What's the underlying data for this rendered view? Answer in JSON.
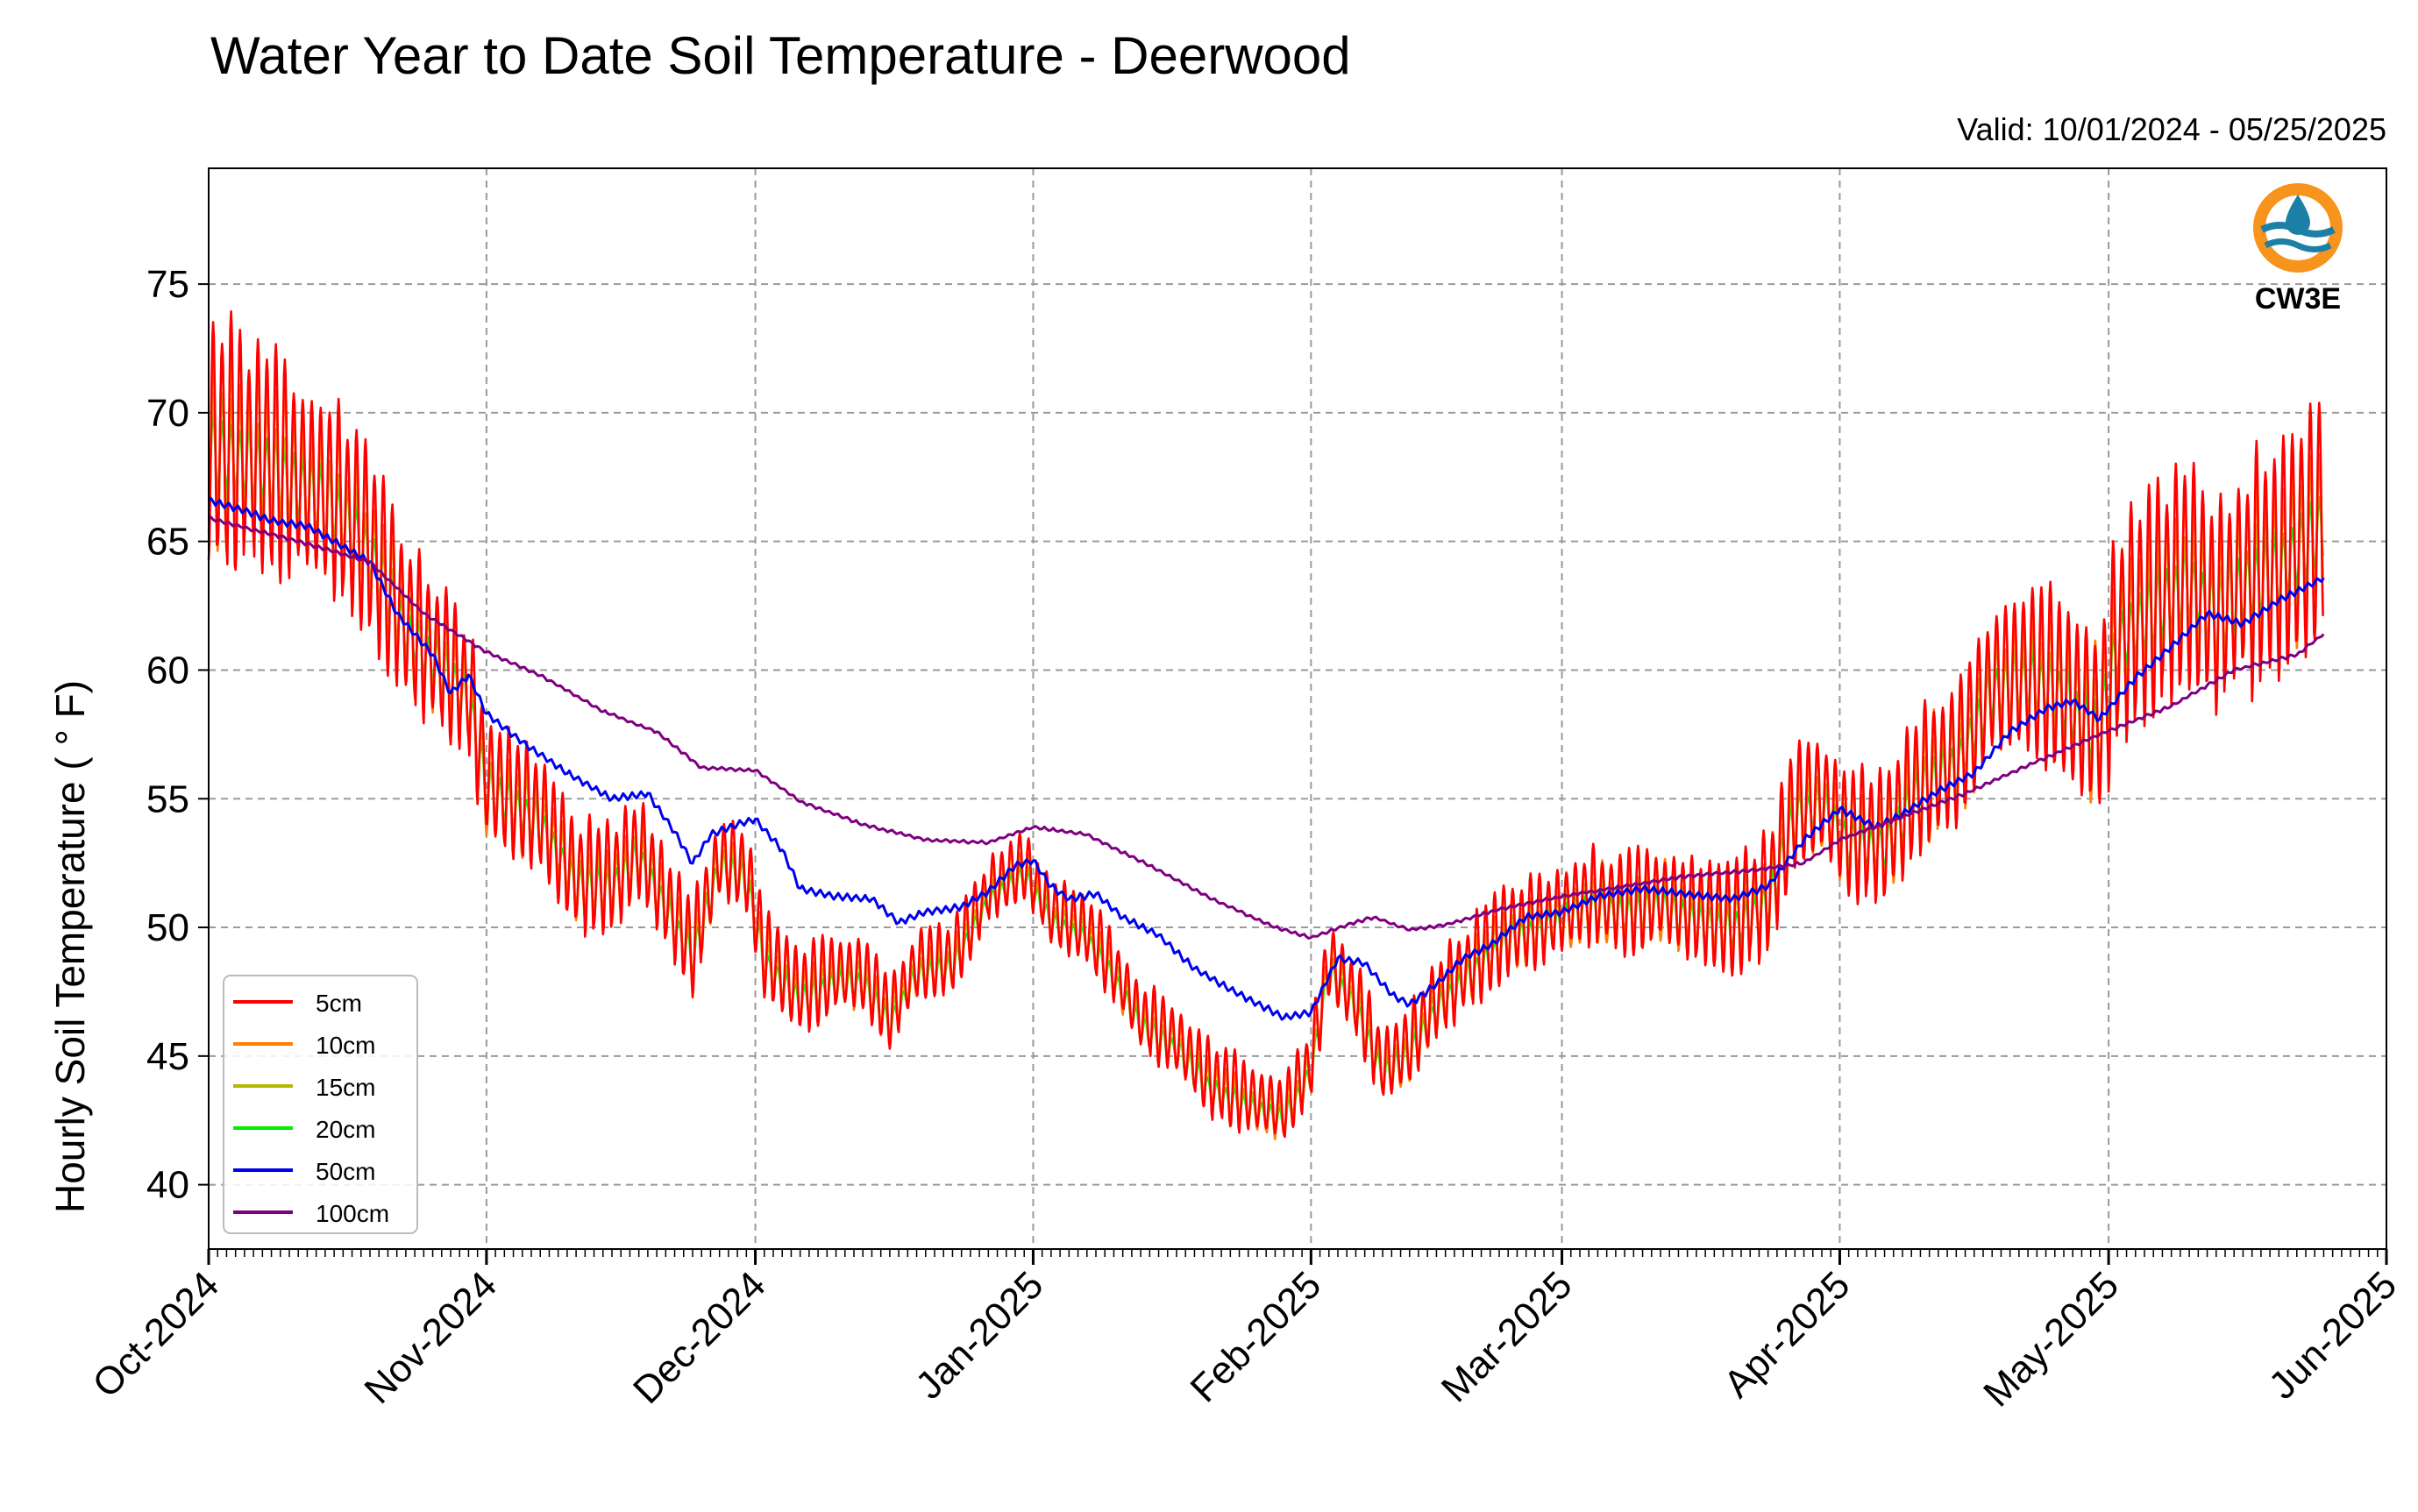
{
  "chart_data": {
    "type": "line",
    "title": "Water Year to Date Soil Temperature - Deerwood",
    "subtitle": "Valid: 10/01/2024 - 05/25/2025",
    "xlabel": "",
    "ylabel": "Hourly Soil Temperature ( ° F)",
    "x_range": [
      "2024-10-01",
      "2025-06-01"
    ],
    "ylim": [
      37.5,
      79.5
    ],
    "y_ticks": [
      40,
      45,
      50,
      55,
      60,
      65,
      70,
      75
    ],
    "x_ticks": [
      {
        "date": "2024-10-01",
        "label": "Oct-2024"
      },
      {
        "date": "2024-11-01",
        "label": "Nov-2024"
      },
      {
        "date": "2024-12-01",
        "label": "Dec-2024"
      },
      {
        "date": "2025-01-01",
        "label": "Jan-2025"
      },
      {
        "date": "2025-02-01",
        "label": "Feb-2025"
      },
      {
        "date": "2025-03-01",
        "label": "Mar-2025"
      },
      {
        "date": "2025-04-01",
        "label": "Apr-2025"
      },
      {
        "date": "2025-05-01",
        "label": "May-2025"
      },
      {
        "date": "2025-06-01",
        "label": "Jun-2025"
      }
    ],
    "grid": true,
    "legend_position": "lower-left",
    "series": [
      {
        "name": "5cm",
        "color": "#ff0000",
        "daily_swing": 0.55
      },
      {
        "name": "10cm",
        "color": "#ff7f00",
        "daily_swing": 0.42
      },
      {
        "name": "15cm",
        "color": "#b5b800",
        "daily_swing": 0.28
      },
      {
        "name": "20cm",
        "color": "#00ee00",
        "daily_swing": 0.2
      },
      {
        "name": "50cm",
        "color": "#0000ee",
        "points": [
          [
            "2024-10-01",
            66.6
          ],
          [
            "2024-10-05",
            66.2
          ],
          [
            "2024-10-08",
            65.8
          ],
          [
            "2024-10-12",
            65.6
          ],
          [
            "2024-10-16",
            64.8
          ],
          [
            "2024-10-19",
            64.2
          ],
          [
            "2024-10-22",
            62.2
          ],
          [
            "2024-10-26",
            60.6
          ],
          [
            "2024-10-28",
            59.1
          ],
          [
            "2024-10-30",
            59.8
          ],
          [
            "2024-11-01",
            58.3
          ],
          [
            "2024-11-05",
            57.2
          ],
          [
            "2024-11-10",
            56.0
          ],
          [
            "2024-11-15",
            55.0
          ],
          [
            "2024-11-19",
            55.2
          ],
          [
            "2024-11-22",
            53.7
          ],
          [
            "2024-11-24",
            52.5
          ],
          [
            "2024-11-26",
            53.6
          ],
          [
            "2024-11-29",
            54.0
          ],
          [
            "2024-12-01",
            54.2
          ],
          [
            "2024-12-04",
            53.0
          ],
          [
            "2024-12-06",
            51.5
          ],
          [
            "2024-12-10",
            51.2
          ],
          [
            "2024-12-14",
            51.1
          ],
          [
            "2024-12-17",
            50.2
          ],
          [
            "2024-12-20",
            50.6
          ],
          [
            "2024-12-24",
            50.8
          ],
          [
            "2024-12-27",
            51.4
          ],
          [
            "2024-12-30",
            52.4
          ],
          [
            "2025-01-01",
            52.6
          ],
          [
            "2025-01-03",
            51.6
          ],
          [
            "2025-01-05",
            51.1
          ],
          [
            "2025-01-08",
            51.3
          ],
          [
            "2025-01-11",
            50.4
          ],
          [
            "2025-01-15",
            49.7
          ],
          [
            "2025-01-19",
            48.4
          ],
          [
            "2025-01-24",
            47.4
          ],
          [
            "2025-01-29",
            46.5
          ],
          [
            "2025-02-01",
            46.7
          ],
          [
            "2025-02-04",
            48.8
          ],
          [
            "2025-02-07",
            48.6
          ],
          [
            "2025-02-10",
            47.4
          ],
          [
            "2025-02-12",
            47.0
          ],
          [
            "2025-02-15",
            47.8
          ],
          [
            "2025-02-18",
            48.8
          ],
          [
            "2025-02-21",
            49.3
          ],
          [
            "2025-02-25",
            50.4
          ],
          [
            "2025-03-01",
            50.6
          ],
          [
            "2025-03-05",
            51.2
          ],
          [
            "2025-03-10",
            51.5
          ],
          [
            "2025-03-15",
            51.3
          ],
          [
            "2025-03-20",
            51.1
          ],
          [
            "2025-03-24",
            51.6
          ],
          [
            "2025-03-28",
            53.4
          ],
          [
            "2025-04-01",
            54.6
          ],
          [
            "2025-04-05",
            53.9
          ],
          [
            "2025-04-08",
            54.4
          ],
          [
            "2025-04-12",
            55.3
          ],
          [
            "2025-04-16",
            56.0
          ],
          [
            "2025-04-20",
            57.6
          ],
          [
            "2025-04-24",
            58.5
          ],
          [
            "2025-04-27",
            58.8
          ],
          [
            "2025-04-30",
            58.1
          ],
          [
            "2025-05-04",
            59.7
          ],
          [
            "2025-05-08",
            60.9
          ],
          [
            "2025-05-12",
            62.2
          ],
          [
            "2025-05-16",
            61.8
          ],
          [
            "2025-05-20",
            62.7
          ],
          [
            "2025-05-25",
            63.6
          ]
        ]
      },
      {
        "name": "100cm",
        "color": "#7f007f",
        "points": [
          [
            "2024-10-01",
            65.9
          ],
          [
            "2024-10-10",
            65.1
          ],
          [
            "2024-10-19",
            64.2
          ],
          [
            "2024-10-25",
            62.2
          ],
          [
            "2024-11-01",
            60.7
          ],
          [
            "2024-11-07",
            59.8
          ],
          [
            "2024-11-14",
            58.4
          ],
          [
            "2024-11-20",
            57.6
          ],
          [
            "2024-11-25",
            56.2
          ],
          [
            "2024-12-01",
            56.1
          ],
          [
            "2024-12-06",
            54.9
          ],
          [
            "2024-12-13",
            54.0
          ],
          [
            "2024-12-20",
            53.4
          ],
          [
            "2024-12-27",
            53.3
          ],
          [
            "2025-01-01",
            53.9
          ],
          [
            "2025-01-07",
            53.6
          ],
          [
            "2025-01-14",
            52.4
          ],
          [
            "2025-01-21",
            51.1
          ],
          [
            "2025-01-28",
            50.0
          ],
          [
            "2025-02-01",
            49.6
          ],
          [
            "2025-02-05",
            50.1
          ],
          [
            "2025-02-08",
            50.4
          ],
          [
            "2025-02-12",
            49.9
          ],
          [
            "2025-02-16",
            50.1
          ],
          [
            "2025-02-22",
            50.7
          ],
          [
            "2025-03-01",
            51.2
          ],
          [
            "2025-03-08",
            51.6
          ],
          [
            "2025-03-15",
            52.0
          ],
          [
            "2025-03-22",
            52.2
          ],
          [
            "2025-03-28",
            52.5
          ],
          [
            "2025-04-01",
            53.4
          ],
          [
            "2025-04-08",
            54.3
          ],
          [
            "2025-04-15",
            55.2
          ],
          [
            "2025-04-22",
            56.3
          ],
          [
            "2025-04-30",
            57.5
          ],
          [
            "2025-05-08",
            58.6
          ],
          [
            "2025-05-15",
            60.0
          ],
          [
            "2025-05-22",
            60.6
          ],
          [
            "2025-05-25",
            61.4
          ]
        ]
      }
    ],
    "shallow_baseline": [
      [
        "2024-10-01",
        68.5
      ],
      [
        "2024-10-08",
        67.7
      ],
      [
        "2024-10-15",
        66.3
      ],
      [
        "2024-10-19",
        64.5
      ],
      [
        "2024-10-23",
        61.5
      ],
      [
        "2024-10-27",
        60.0
      ],
      [
        "2024-10-30",
        58.8
      ],
      [
        "2024-11-01",
        55.4
      ],
      [
        "2024-11-07",
        54.0
      ],
      [
        "2024-11-11",
        51.6
      ],
      [
        "2024-11-15",
        51.5
      ],
      [
        "2024-11-18",
        52.7
      ],
      [
        "2024-11-21",
        50.7
      ],
      [
        "2024-11-24",
        48.8
      ],
      [
        "2024-11-27",
        52.3
      ],
      [
        "2024-11-30",
        51.8
      ],
      [
        "2024-12-02",
        48.6
      ],
      [
        "2024-12-06",
        47.1
      ],
      [
        "2024-12-10",
        47.8
      ],
      [
        "2024-12-13",
        47.8
      ],
      [
        "2024-12-16",
        46.2
      ],
      [
        "2024-12-19",
        48.1
      ],
      [
        "2024-12-23",
        48.4
      ],
      [
        "2024-12-27",
        51.0
      ],
      [
        "2024-12-31",
        52.0
      ],
      [
        "2025-01-03",
        50.2
      ],
      [
        "2025-01-07",
        49.5
      ],
      [
        "2025-01-10",
        48.0
      ],
      [
        "2025-01-13",
        46.1
      ],
      [
        "2025-01-17",
        45.2
      ],
      [
        "2025-01-21",
        43.6
      ],
      [
        "2025-01-25",
        43.0
      ],
      [
        "2025-01-29",
        42.5
      ],
      [
        "2025-02-01",
        44.3
      ],
      [
        "2025-02-03",
        48.3
      ],
      [
        "2025-02-06",
        46.8
      ],
      [
        "2025-02-09",
        44.2
      ],
      [
        "2025-02-12",
        45.0
      ],
      [
        "2025-02-15",
        46.8
      ],
      [
        "2025-02-19",
        48.2
      ],
      [
        "2025-02-23",
        49.5
      ],
      [
        "2025-02-27",
        49.9
      ],
      [
        "2025-03-04",
        50.8
      ],
      [
        "2025-03-08",
        50.5
      ],
      [
        "2025-03-12",
        50.8
      ],
      [
        "2025-03-16",
        50.2
      ],
      [
        "2025-03-20",
        49.9
      ],
      [
        "2025-03-24",
        50.9
      ],
      [
        "2025-03-27",
        54.3
      ],
      [
        "2025-03-30",
        54.7
      ],
      [
        "2025-04-02",
        53.2
      ],
      [
        "2025-04-06",
        53.1
      ],
      [
        "2025-04-10",
        55.3
      ],
      [
        "2025-04-14",
        56.2
      ],
      [
        "2025-04-18",
        59.1
      ],
      [
        "2025-04-22",
        59.6
      ],
      [
        "2025-04-25",
        59.2
      ],
      [
        "2025-04-28",
        58.0
      ],
      [
        "2025-04-30",
        57.5
      ],
      [
        "2025-05-02",
        61.0
      ],
      [
        "2025-05-06",
        62.3
      ],
      [
        "2025-05-10",
        63.3
      ],
      [
        "2025-05-13",
        62.0
      ],
      [
        "2025-05-16",
        63.2
      ],
      [
        "2025-05-20",
        63.8
      ],
      [
        "2025-05-25",
        65.6
      ]
    ],
    "daily_amplitude": [
      [
        "2024-10-01",
        8.0
      ],
      [
        "2024-10-15",
        6.2
      ],
      [
        "2024-10-25",
        4.8
      ],
      [
        "2024-11-10",
        3.6
      ],
      [
        "2024-12-01",
        2.8
      ],
      [
        "2025-01-01",
        2.0
      ],
      [
        "2025-01-20",
        2.4
      ],
      [
        "2025-02-01",
        2.2
      ],
      [
        "2025-02-20",
        2.8
      ],
      [
        "2025-03-15",
        3.3
      ],
      [
        "2025-04-01",
        4.2
      ],
      [
        "2025-04-20",
        5.5
      ],
      [
        "2025-05-01",
        6.6
      ],
      [
        "2025-05-25",
        7.8
      ]
    ]
  },
  "legend": [
    "5cm",
    "10cm",
    "15cm",
    "20cm",
    "50cm",
    "100cm"
  ],
  "logo": {
    "text": "CW3E",
    "ring_color": "#f7941d",
    "wave_color": "#1b7fa6",
    "text_color": "#2a7fb8"
  }
}
